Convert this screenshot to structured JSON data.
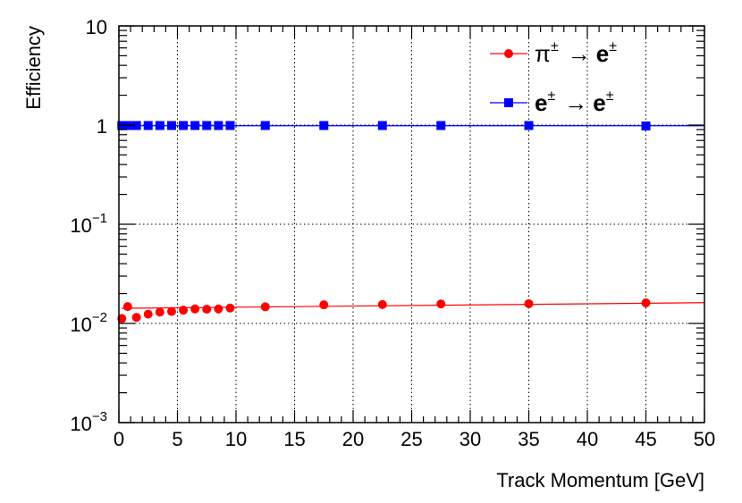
{
  "chart_data": {
    "type": "scatter",
    "xlabel": "Track Momentum [GeV]",
    "ylabel": "Efficiency",
    "xlim": [
      0,
      50
    ],
    "ylim": [
      0.001,
      10
    ],
    "yscale": "log",
    "x_ticks": [
      "0",
      "5",
      "10",
      "15",
      "20",
      "25",
      "30",
      "35",
      "40",
      "45",
      "50"
    ],
    "y_ticks": [
      {
        "base": "10",
        "exp": "−3",
        "value": 0.001
      },
      {
        "base": "10",
        "exp": "−2",
        "value": 0.01
      },
      {
        "base": "10",
        "exp": "−1",
        "value": 0.1
      },
      {
        "base": "1",
        "exp": "",
        "value": 1
      },
      {
        "base": "10",
        "exp": "",
        "value": 10
      }
    ],
    "grid": true,
    "legend_position": "top-right",
    "series": [
      {
        "name": "π± → e±",
        "label_parts": {
          "from": "π",
          "from_sup": "±",
          "arrow": "→",
          "to": "e",
          "to_sup": "±"
        },
        "color": "#ff0000",
        "marker": "circle",
        "x": [
          0.25,
          0.75,
          1.5,
          2.5,
          3.5,
          4.5,
          5.5,
          6.5,
          7.5,
          8.5,
          9.5,
          12.5,
          17.5,
          22.5,
          27.5,
          35,
          45
        ],
        "y": [
          0.0112,
          0.0148,
          0.0115,
          0.0124,
          0.013,
          0.0132,
          0.0136,
          0.014,
          0.0139,
          0.014,
          0.0143,
          0.0147,
          0.0154,
          0.0155,
          0.0157,
          0.0158,
          0.0161
        ],
        "fit_line": {
          "x": [
            0.25,
            50
          ],
          "y": [
            0.0142,
            0.0162
          ]
        }
      },
      {
        "name": "e± → e±",
        "label_parts": {
          "from": "e",
          "from_sup": "±",
          "arrow": "→",
          "to": "e",
          "to_sup": "±"
        },
        "color": "#0000ff",
        "marker": "square",
        "x": [
          0.25,
          0.75,
          1.5,
          2.5,
          3.5,
          4.5,
          5.5,
          6.5,
          7.5,
          8.5,
          9.5,
          12.5,
          17.5,
          22.5,
          27.5,
          35,
          45
        ],
        "y": [
          0.99,
          0.99,
          0.99,
          0.99,
          0.99,
          0.99,
          0.99,
          0.99,
          0.99,
          0.99,
          0.99,
          0.99,
          0.99,
          0.99,
          0.99,
          0.99,
          0.98
        ],
        "fit_line": {
          "x": [
            0.25,
            50
          ],
          "y": [
            0.985,
            0.985
          ]
        }
      }
    ]
  }
}
